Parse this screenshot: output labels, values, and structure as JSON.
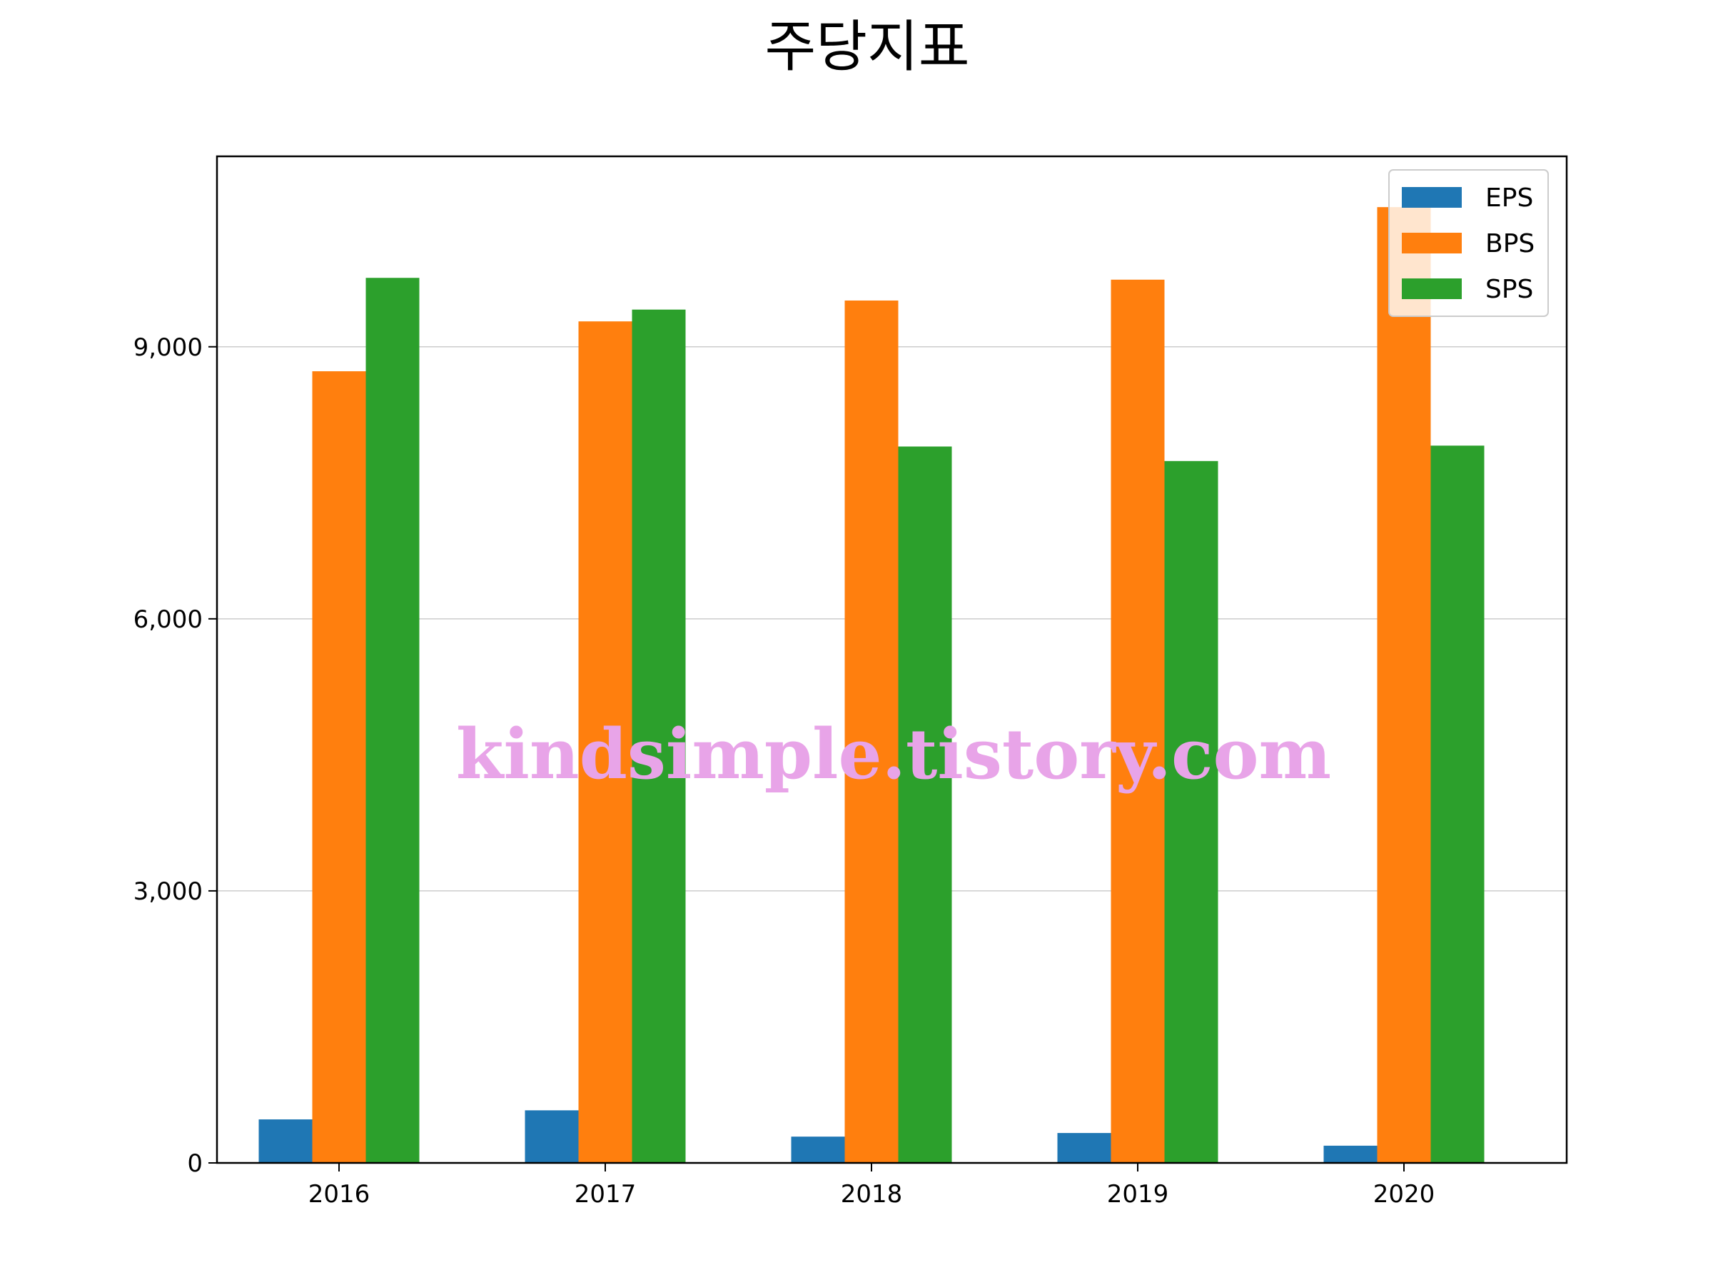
{
  "chart_data": {
    "type": "bar",
    "title": "주당지표",
    "categories": [
      "2016",
      "2017",
      "2018",
      "2019",
      "2020"
    ],
    "series": [
      {
        "name": "EPS",
        "values": [
          480,
          580,
          290,
          330,
          190
        ],
        "color": "#1f77b4"
      },
      {
        "name": "BPS",
        "values": [
          8730,
          9280,
          9510,
          9740,
          10540
        ],
        "color": "#ff7f0e"
      },
      {
        "name": "SPS",
        "values": [
          9760,
          9410,
          7900,
          7740,
          7910
        ],
        "color": "#2ca02c"
      }
    ],
    "ylim": [
      0,
      11100
    ],
    "yticks": [
      0,
      3000,
      6000,
      9000
    ],
    "ytick_labels": [
      "0",
      "3,000",
      "6,000",
      "9,000"
    ],
    "grid": "horizontal",
    "legend": "top-right"
  },
  "watermark": "kindsimple.tistory.com"
}
